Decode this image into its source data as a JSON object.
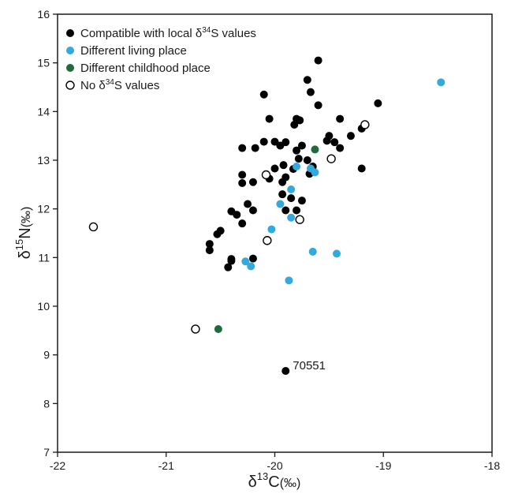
{
  "chart_data": {
    "type": "scatter",
    "xlim": [
      -22,
      -18
    ],
    "ylim": [
      7,
      16
    ],
    "xticks": [
      -22,
      -21,
      -20,
      -19,
      -18
    ],
    "yticks": [
      7,
      8,
      9,
      10,
      11,
      12,
      13,
      14,
      15,
      16
    ],
    "xlabel": {
      "delta": "δ",
      "sup": "13",
      "element": "C",
      "unit": "(‰)"
    },
    "ylabel": {
      "delta": "δ",
      "sup": "15",
      "element": "N",
      "unit": "(‰)"
    },
    "grid": false,
    "legend_position": "top-left",
    "legend_sup": "34",
    "colors": {
      "compatible": "#000000",
      "living": "#33aadd",
      "childhood": "#1e6b3c",
      "nodata": "#ffffff",
      "outline": "#000000"
    },
    "series": [
      {
        "key": "compatible",
        "name": "Compatible with local δ34S values",
        "legend_pre": "Compatible with local δ",
        "legend_post": "S values",
        "marker": "filled-black",
        "points": [
          [
            -19.6,
            15.05
          ],
          [
            -19.7,
            14.65
          ],
          [
            -20.1,
            14.35
          ],
          [
            -19.67,
            14.4
          ],
          [
            -19.05,
            14.17
          ],
          [
            -19.6,
            14.13
          ],
          [
            -20.05,
            13.85
          ],
          [
            -19.8,
            13.85
          ],
          [
            -19.77,
            13.82
          ],
          [
            -19.4,
            13.85
          ],
          [
            -19.82,
            13.73
          ],
          [
            -19.3,
            13.5
          ],
          [
            -19.2,
            13.65
          ],
          [
            -19.5,
            13.5
          ],
          [
            -19.52,
            13.4
          ],
          [
            -19.45,
            13.37
          ],
          [
            -20.1,
            13.38
          ],
          [
            -19.9,
            13.37
          ],
          [
            -19.75,
            13.3
          ],
          [
            -19.95,
            13.3
          ],
          [
            -20.0,
            13.38
          ],
          [
            -20.18,
            13.25
          ],
          [
            -20.3,
            13.25
          ],
          [
            -19.4,
            13.25
          ],
          [
            -19.8,
            13.2
          ],
          [
            -19.78,
            13.03
          ],
          [
            -20.0,
            12.83
          ],
          [
            -19.83,
            12.82
          ],
          [
            -19.7,
            13.0
          ],
          [
            -19.65,
            12.87
          ],
          [
            -19.68,
            12.72
          ],
          [
            -19.2,
            12.83
          ],
          [
            -20.3,
            12.7
          ],
          [
            -20.3,
            12.53
          ],
          [
            -20.2,
            12.55
          ],
          [
            -20.05,
            12.62
          ],
          [
            -19.92,
            12.9
          ],
          [
            -19.93,
            12.55
          ],
          [
            -19.9,
            12.65
          ],
          [
            -19.93,
            12.3
          ],
          [
            -19.85,
            12.22
          ],
          [
            -19.75,
            12.17
          ],
          [
            -20.25,
            12.1
          ],
          [
            -19.8,
            11.97
          ],
          [
            -19.9,
            11.97
          ],
          [
            -20.2,
            11.97
          ],
          [
            -20.4,
            11.95
          ],
          [
            -20.35,
            11.88
          ],
          [
            -20.3,
            11.7
          ],
          [
            -20.5,
            11.55
          ],
          [
            -20.53,
            11.48
          ],
          [
            -20.6,
            11.28
          ],
          [
            -20.6,
            11.15
          ],
          [
            -20.4,
            10.97
          ],
          [
            -20.4,
            10.93
          ],
          [
            -20.2,
            10.98
          ],
          [
            -20.43,
            10.8
          ],
          [
            -19.9,
            8.67
          ]
        ]
      },
      {
        "key": "living",
        "name": "Different living place",
        "legend_pre": "Different living place",
        "legend_post": "",
        "marker": "filled-blue",
        "points": [
          [
            -18.47,
            14.6
          ],
          [
            -19.8,
            12.87
          ],
          [
            -19.67,
            12.83
          ],
          [
            -19.63,
            12.75
          ],
          [
            -19.85,
            12.4
          ],
          [
            -19.95,
            12.1
          ],
          [
            -19.85,
            11.82
          ],
          [
            -20.03,
            11.58
          ],
          [
            -19.65,
            11.12
          ],
          [
            -19.43,
            11.08
          ],
          [
            -20.27,
            10.92
          ],
          [
            -20.22,
            10.82
          ],
          [
            -19.87,
            10.53
          ]
        ]
      },
      {
        "key": "childhood",
        "name": "Different childhood place",
        "legend_pre": "Different childhood place",
        "legend_post": "",
        "marker": "filled-green",
        "points": [
          [
            -19.63,
            13.22
          ],
          [
            -20.52,
            9.53
          ]
        ]
      },
      {
        "key": "nodata",
        "name": "No δ34S values",
        "legend_pre": "No δ",
        "legend_post": "S values",
        "marker": "open-circle",
        "points": [
          [
            -21.67,
            11.63
          ],
          [
            -20.73,
            9.53
          ],
          [
            -20.07,
            11.35
          ],
          [
            -20.08,
            12.7
          ],
          [
            -19.77,
            11.78
          ],
          [
            -19.48,
            13.03
          ],
          [
            -19.17,
            13.73
          ]
        ]
      }
    ],
    "annotations": [
      {
        "text": "70551",
        "x": -19.9,
        "y": 8.67
      }
    ]
  }
}
